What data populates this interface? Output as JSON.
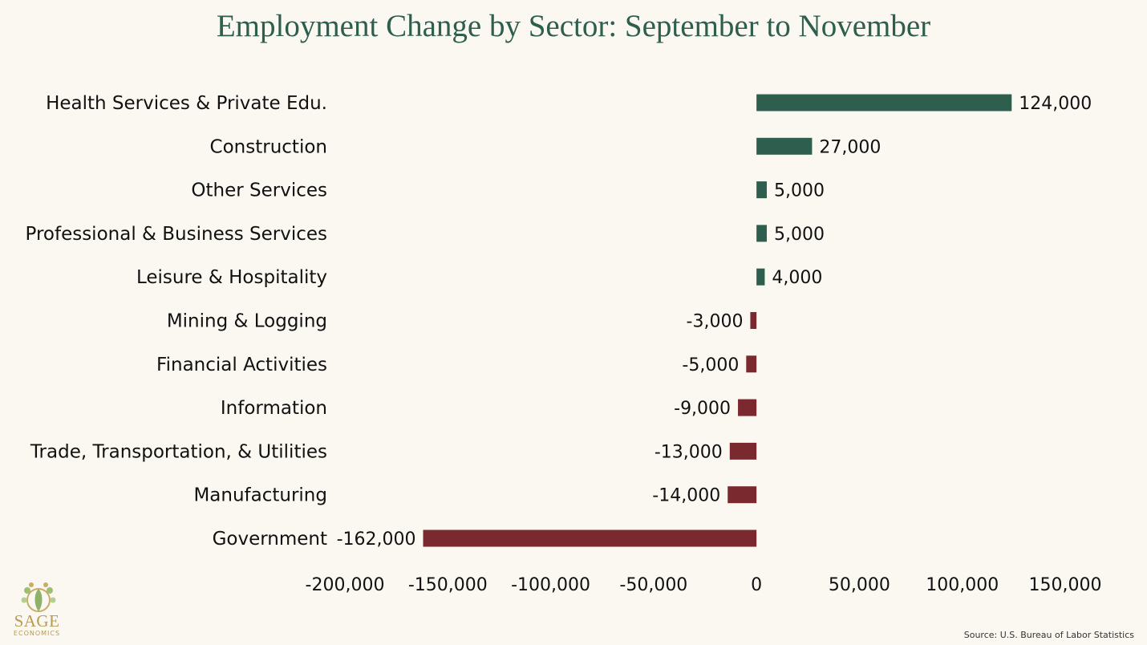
{
  "chart_data": {
    "type": "bar",
    "orientation": "horizontal",
    "title": "Employment Change by Sector: September to November",
    "categories": [
      "Health Services & Private Edu.",
      "Construction",
      "Other Services",
      "Professional & Business Services",
      "Leisure & Hospitality",
      "Mining & Logging",
      "Financial Activities",
      "Information",
      "Trade, Transportation, & Utilities",
      "Manufacturing",
      "Government"
    ],
    "values": [
      124000,
      27000,
      5000,
      5000,
      4000,
      -3000,
      -5000,
      -9000,
      -13000,
      -14000,
      -162000
    ],
    "value_labels": [
      "124,000",
      "27,000",
      "5,000",
      "5,000",
      "4,000",
      "-3,000",
      "-5,000",
      "-9,000",
      "-13,000",
      "-14,000",
      "-162,000"
    ],
    "xlim": [
      -200000,
      150000
    ],
    "xticks": [
      -200000,
      -150000,
      -100000,
      -50000,
      0,
      50000,
      100000,
      150000
    ],
    "xtick_labels": [
      "-200,000",
      "-150,000",
      "-100,000",
      "-50,000",
      "0",
      "50,000",
      "100,000",
      "150,000"
    ],
    "xlabel": "",
    "ylabel": "",
    "grid": false,
    "legend": "none",
    "colors": {
      "positive": "#2e5e4e",
      "negative": "#7a2a2e"
    }
  },
  "source_note": "Source: U.S. Bureau of Labor Statistics",
  "logo": {
    "text": "SAGE",
    "subtext": "ECONOMICS"
  }
}
